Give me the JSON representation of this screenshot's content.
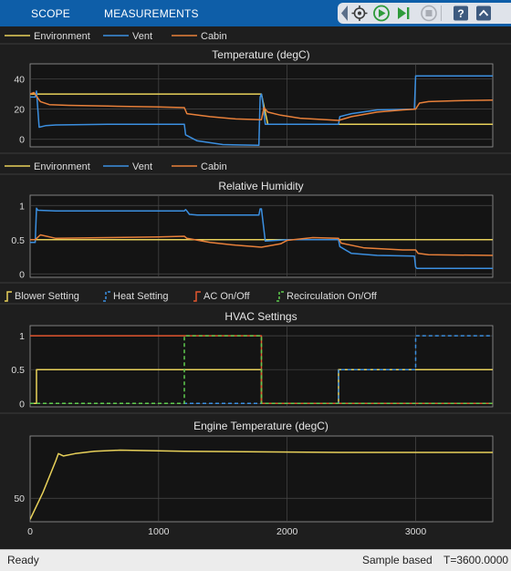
{
  "toolstrip": {
    "tabs": [
      {
        "label": "SCOPE"
      },
      {
        "label": "MEASUREMENTS"
      }
    ],
    "icons": [
      "highlight-signal-icon",
      "run-icon",
      "step-forward-icon",
      "stop-icon",
      "help-icon",
      "collapse-icon"
    ]
  },
  "status": {
    "left": "Ready",
    "mode": "Sample based",
    "time": "T=3600.0000"
  },
  "colors": {
    "yellow": "#e8d15a",
    "blue": "#3b8fe0",
    "orange": "#e8803a",
    "red": "#e2562f",
    "green": "#5fcb4f",
    "background": "#1e1e1e",
    "axes": "#141414",
    "grid": "#4a4a4a",
    "text": "#dddddd",
    "toolstrip": "#0e5ea8"
  },
  "chart_data": [
    {
      "type": "line",
      "title": "Temperature (degC)",
      "legend": [
        "Environment",
        "Vent",
        "Cabin"
      ],
      "legend_placement": "top",
      "xlim": [
        0,
        3600
      ],
      "ylim": [
        -5,
        50
      ],
      "yticks": [
        0,
        20,
        40
      ],
      "xticks": [
        0,
        1000,
        2000,
        3000
      ],
      "show_xtick_labels": false,
      "grid": true,
      "series": [
        {
          "name": "Environment",
          "color": "yellow",
          "dashed": false,
          "x": [
            0,
            1800,
            1850,
            3600
          ],
          "y": [
            30,
            30,
            10,
            10
          ]
        },
        {
          "name": "Vent",
          "color": "blue",
          "dashed": false,
          "x": [
            0,
            40,
            50,
            70,
            120,
            200,
            600,
            1200,
            1210,
            1300,
            1500,
            1780,
            1790,
            1800,
            1810,
            1830,
            2000,
            2400,
            2410,
            2500,
            2700,
            2990,
            3000,
            3010,
            3600
          ],
          "y": [
            28,
            28,
            32,
            8,
            9,
            9.5,
            10,
            10,
            3,
            -1,
            -3.5,
            -4,
            28,
            30,
            25,
            10,
            10,
            10,
            15,
            17,
            19.5,
            20,
            42,
            42,
            42
          ]
        },
        {
          "name": "Cabin",
          "color": "orange",
          "dashed": false,
          "x": [
            0,
            30,
            80,
            150,
            300,
            600,
            1000,
            1200,
            1220,
            1400,
            1600,
            1800,
            1820,
            1850,
            1950,
            2100,
            2400,
            2500,
            2700,
            2900,
            3000,
            3030,
            3100,
            3300,
            3600
          ],
          "y": [
            30,
            31,
            25,
            23,
            22.5,
            22,
            21.5,
            21,
            17,
            15,
            13.5,
            13,
            21,
            18,
            16,
            14,
            12.5,
            15,
            18,
            19.5,
            20,
            24,
            25,
            25.5,
            26
          ]
        }
      ]
    },
    {
      "type": "line",
      "title": "Relative Humidity",
      "legend": [
        "Environment",
        "Vent",
        "Cabin"
      ],
      "legend_placement": "top",
      "xlim": [
        0,
        3600
      ],
      "ylim": [
        -0.05,
        1.15
      ],
      "yticks": [
        0,
        0.5,
        1
      ],
      "ytick_labels": [
        "0",
        "0.5",
        "1"
      ],
      "xticks": [
        0,
        1000,
        2000,
        3000
      ],
      "show_xtick_labels": false,
      "grid": true,
      "series": [
        {
          "name": "Environment",
          "color": "yellow",
          "dashed": false,
          "x": [
            0,
            3600
          ],
          "y": [
            0.5,
            0.5
          ]
        },
        {
          "name": "Vent",
          "color": "blue",
          "dashed": false,
          "x": [
            0,
            40,
            50,
            60,
            200,
            600,
            1200,
            1210,
            1220,
            1240,
            1300,
            1780,
            1790,
            1800,
            1830,
            2000,
            2400,
            2410,
            2500,
            2700,
            2990,
            3000,
            3010,
            3600
          ],
          "y": [
            0.46,
            0.46,
            0.96,
            0.93,
            0.92,
            0.92,
            0.92,
            0.94,
            0.92,
            0.87,
            0.86,
            0.86,
            0.95,
            0.95,
            0.48,
            0.5,
            0.5,
            0.4,
            0.3,
            0.27,
            0.26,
            0.1,
            0.08,
            0.08
          ]
        },
        {
          "name": "Cabin",
          "color": "orange",
          "dashed": false,
          "x": [
            0,
            40,
            80,
            200,
            600,
            1000,
            1200,
            1220,
            1400,
            1600,
            1800,
            1830,
            1950,
            2000,
            2200,
            2400,
            2420,
            2600,
            2900,
            3000,
            3020,
            3100,
            3600
          ],
          "y": [
            0.5,
            0.5,
            0.57,
            0.52,
            0.53,
            0.54,
            0.55,
            0.52,
            0.46,
            0.42,
            0.39,
            0.4,
            0.44,
            0.49,
            0.53,
            0.52,
            0.45,
            0.38,
            0.35,
            0.35,
            0.3,
            0.28,
            0.27
          ]
        }
      ]
    },
    {
      "type": "line",
      "title": "HVAC Settings",
      "legend": [
        "Blower Setting",
        "Heat Setting",
        "AC On/Off",
        "Recirculation On/Off"
      ],
      "legend_placement": "top",
      "xlim": [
        0,
        3600
      ],
      "ylim": [
        -0.05,
        1.15
      ],
      "yticks": [
        0,
        0.5,
        1
      ],
      "ytick_labels": [
        "0",
        "0.5",
        "1"
      ],
      "xticks": [
        0,
        1000,
        2000,
        3000
      ],
      "show_xtick_labels": false,
      "grid": true,
      "series": [
        {
          "name": "Blower Setting",
          "color": "yellow",
          "dashed": false,
          "x": [
            0,
            50,
            50,
            1800,
            1800,
            2400,
            2400,
            3600
          ],
          "y": [
            0,
            0,
            0.5,
            0.5,
            0,
            0,
            0.5,
            0.5
          ]
        },
        {
          "name": "Heat Setting",
          "color": "blue",
          "dashed": true,
          "x": [
            0,
            2400,
            2400,
            3000,
            3000,
            3600
          ],
          "y": [
            0,
            0,
            0.5,
            0.5,
            1,
            1
          ]
        },
        {
          "name": "AC On/Off",
          "color": "red",
          "dashed": false,
          "x": [
            0,
            1800,
            1800,
            3600
          ],
          "y": [
            1,
            1,
            0,
            0
          ]
        },
        {
          "name": "Recirculation On/Off",
          "color": "green",
          "dashed": true,
          "x": [
            0,
            1200,
            1200,
            1800,
            1800,
            3600
          ],
          "y": [
            0,
            0,
            1,
            1,
            0,
            0
          ]
        }
      ]
    },
    {
      "type": "line",
      "title": "Engine Temperature (degC)",
      "legend": [],
      "xlim": [
        0,
        3600
      ],
      "ylim": [
        30,
        103
      ],
      "yticks": [
        50
      ],
      "xticks": [
        0,
        1000,
        2000,
        3000
      ],
      "show_xtick_labels": true,
      "grid": true,
      "series": [
        {
          "name": "",
          "color": "yellow",
          "dashed": false,
          "x": [
            0,
            100,
            200,
            220,
            260,
            350,
            500,
            700,
            1200,
            1800,
            2400,
            3000,
            3600
          ],
          "y": [
            32,
            55,
            82,
            88,
            86,
            88,
            90,
            91,
            90,
            89.5,
            89,
            89,
            89
          ]
        }
      ]
    }
  ]
}
